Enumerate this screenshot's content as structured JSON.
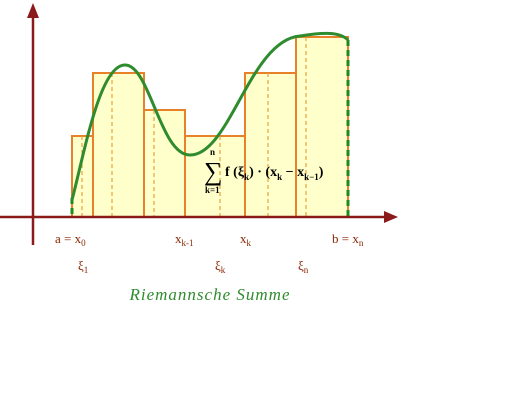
{
  "axis_labels": [
    {
      "text": "a = x",
      "sub": "0"
    },
    {
      "text": "x",
      "sub": "k-1"
    },
    {
      "text": "x",
      "sub": "k"
    },
    {
      "text": "b = x",
      "sub": "n"
    }
  ],
  "sample_points": [
    {
      "text": "ξ",
      "sub": "1"
    },
    {
      "text": "ξ",
      "sub": "k"
    },
    {
      "text": "ξ",
      "sub": "n"
    }
  ],
  "formula": {
    "sum": "∑",
    "upper": "n",
    "lower": "k=1",
    "parts": [
      {
        "text": "f (ξ",
        "sub": "k"
      },
      {
        "text": ") · (x",
        "sub": "k"
      },
      {
        "text": " − x",
        "sub": "k−1"
      }
    ],
    "end": ")"
  },
  "caption": "Riemannsche Summe"
}
